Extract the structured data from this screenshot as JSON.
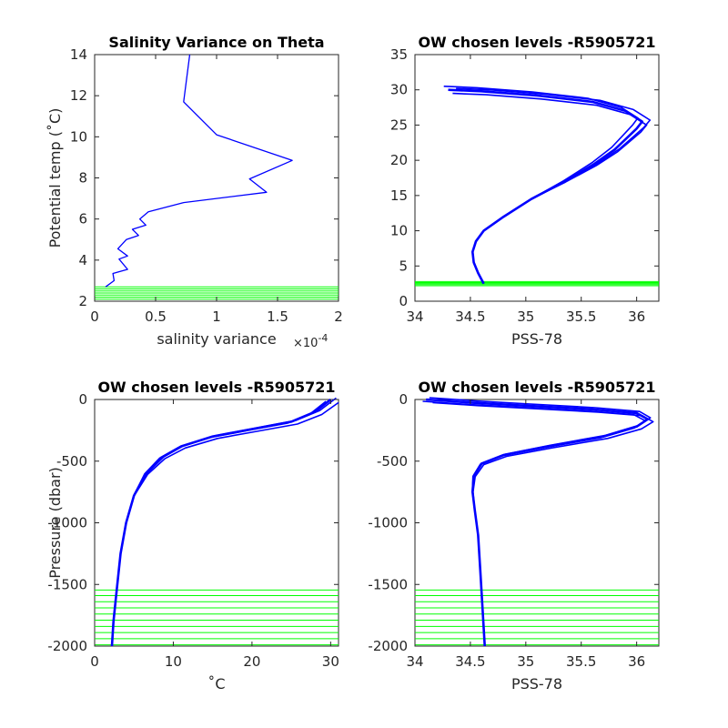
{
  "chart_data": [
    {
      "type": "line",
      "title": "Salinity Variance on Theta",
      "xlabel": "salinity variance",
      "ylabel": "Potential temp (˚C)",
      "x_multiplier": "×10",
      "x_multiplier_exp": "-4",
      "xlim": [
        0,
        2
      ],
      "ylim": [
        2,
        14
      ],
      "xticks": [
        "0",
        "0.5",
        "1",
        "1.5",
        "2"
      ],
      "yticks": [
        "2",
        "4",
        "6",
        "8",
        "10",
        "12",
        "14"
      ],
      "series": [
        {
          "color": "#0000ff",
          "x": [
            0.78,
            0.73,
            1.0,
            1.62,
            1.27,
            1.41,
            0.73,
            0.44,
            0.37,
            0.42,
            0.31,
            0.36,
            0.26,
            0.19,
            0.27,
            0.2,
            0.27,
            0.15,
            0.16,
            0.09
          ],
          "y": [
            14.0,
            11.7,
            10.1,
            8.85,
            7.95,
            7.3,
            6.8,
            6.35,
            6.0,
            5.7,
            5.5,
            5.2,
            5.0,
            4.55,
            4.2,
            4.05,
            3.55,
            3.35,
            3.0,
            2.7
          ]
        }
      ],
      "chosen_levels": {
        "color": "#00ff00",
        "y": [
          2.1,
          2.2,
          2.3,
          2.4,
          2.5,
          2.6,
          2.7
        ]
      }
    },
    {
      "type": "line",
      "title": "OW chosen levels -R5905721",
      "xlabel": "PSS-78",
      "ylabel": "",
      "xlim": [
        34,
        36.2
      ],
      "ylim": [
        0,
        35
      ],
      "xticks": [
        "34",
        "34.5",
        "35",
        "35.5",
        "36"
      ],
      "yticks": [
        "0",
        "5",
        "10",
        "15",
        "20",
        "25",
        "30",
        "35"
      ],
      "series": [
        {
          "color": "#0000ff",
          "x": [
            34.62,
            34.57,
            34.53,
            34.52,
            34.55,
            34.62,
            34.8,
            35.05,
            35.35,
            35.62,
            35.8,
            35.9,
            36.0,
            36.05,
            35.9,
            35.6,
            35.1,
            34.6,
            34.3
          ],
          "y": [
            2.5,
            4.0,
            5.5,
            7.0,
            8.5,
            10.0,
            12.0,
            14.5,
            17.0,
            19.5,
            21.5,
            23.0,
            24.5,
            25.5,
            27.0,
            28.3,
            29.2,
            29.8,
            30.0
          ]
        }
      ],
      "chosen_levels": {
        "color": "#00ff00",
        "y": [
          2.2,
          2.35,
          2.5,
          2.65,
          2.8
        ]
      }
    },
    {
      "type": "line",
      "title": "OW chosen levels -R5905721",
      "xlabel": "˚C",
      "ylabel": "Pressure (dbar)",
      "xlim": [
        0,
        31
      ],
      "ylim": [
        -2000,
        0
      ],
      "xticks": [
        "0",
        "10",
        "20",
        "30"
      ],
      "yticks": [
        "-2000",
        "-1500",
        "-1000",
        "-500",
        "0"
      ],
      "series": [
        {
          "color": "#0000ff",
          "x": [
            2.2,
            2.4,
            2.8,
            3.3,
            4.0,
            5.0,
            6.5,
            8.5,
            11.0,
            15.0,
            20.0,
            25.0,
            28.0,
            30.0
          ],
          "y": [
            -2000,
            -1800,
            -1550,
            -1250,
            -1000,
            -780,
            -600,
            -470,
            -380,
            -300,
            -240,
            -180,
            -100,
            0
          ]
        }
      ],
      "chosen_levels": {
        "color": "#00ff00",
        "y": [
          -1990,
          -1940,
          -1890,
          -1840,
          -1790,
          -1740,
          -1690,
          -1640,
          -1590,
          -1545
        ]
      }
    },
    {
      "type": "line",
      "title": "OW chosen levels -R5905721",
      "xlabel": "PSS-78",
      "ylabel": "",
      "xlim": [
        34,
        36.2
      ],
      "ylim": [
        -2000,
        0
      ],
      "xticks": [
        "34",
        "34.5",
        "35",
        "35.5",
        "36"
      ],
      "yticks": [
        "-2000",
        "-1500",
        "-1000",
        "-500",
        "0"
      ],
      "series": [
        {
          "color": "#0000ff",
          "x": [
            34.63,
            34.61,
            34.59,
            34.57,
            34.54,
            34.52,
            34.53,
            34.6,
            34.8,
            35.2,
            35.7,
            36.0,
            36.1,
            36.0,
            35.6,
            35.0,
            34.5,
            34.1
          ],
          "y": [
            -2000,
            -1700,
            -1400,
            -1100,
            -900,
            -750,
            -620,
            -520,
            -450,
            -380,
            -300,
            -220,
            -160,
            -110,
            -80,
            -50,
            -25,
            0
          ]
        }
      ],
      "chosen_levels": {
        "color": "#00ff00",
        "y": [
          -1990,
          -1940,
          -1890,
          -1840,
          -1790,
          -1740,
          -1690,
          -1640,
          -1590,
          -1545
        ]
      }
    }
  ]
}
